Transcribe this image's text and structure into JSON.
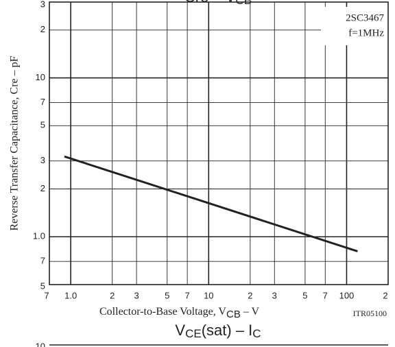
{
  "chart_data": {
    "type": "line",
    "title_parts": [
      "Cre – V",
      "CB"
    ],
    "x_label_parts": [
      "Collector-to-Base Voltage,  V",
      "CB",
      "  –  V"
    ],
    "y_label": "Reverse Transfer Capacitance,  Cre  –  pF",
    "annotations": [
      "2SC3467",
      "f=1MHz"
    ],
    "figure_code": "ITR05100",
    "x_scale": "log",
    "y_scale": "log",
    "grid": true,
    "xlim": [
      0.7,
      200
    ],
    "ylim": [
      0.5,
      30
    ],
    "xticks": [
      {
        "value": 0.7,
        "label": "7"
      },
      {
        "value": 1,
        "label": "1.0"
      },
      2,
      3,
      5,
      7,
      10,
      {
        "value": 20,
        "label": "2"
      },
      {
        "value": 30,
        "label": "3"
      },
      {
        "value": 50,
        "label": "5"
      },
      {
        "value": 70,
        "label": "7"
      },
      100,
      {
        "value": 200,
        "label": "2"
      }
    ],
    "yticks": [
      {
        "value": 0.5,
        "label": "5"
      },
      {
        "value": 0.7,
        "label": "7"
      },
      {
        "value": 1,
        "label": "1.0"
      },
      2,
      3,
      5,
      7,
      10,
      {
        "value": 20,
        "label": "2"
      },
      {
        "value": 30,
        "label": "3"
      }
    ],
    "x": [
      0.9,
      120
    ],
    "series": [
      {
        "name": "Cre",
        "color": "#222222",
        "values": [
          3.2,
          0.81
        ]
      }
    ]
  },
  "next_chart": {
    "title_parts": [
      "V",
      "CE",
      "(sat)  –  I",
      "C"
    ],
    "top_tick": "10"
  }
}
